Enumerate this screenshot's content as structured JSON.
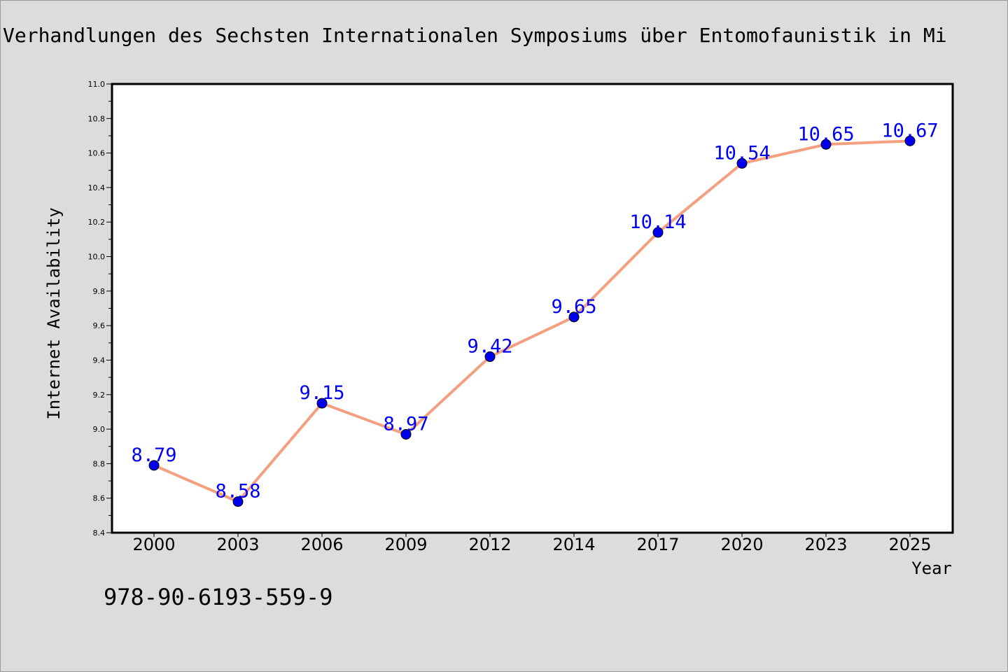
{
  "document": {
    "title": "Verhandlungen des Sechsten Internationalen Symposiums über Entomofaunistik in Mi",
    "isbn": "978-90-6193-559-9"
  },
  "chart_data": {
    "type": "line",
    "categories": [
      "2000",
      "2003",
      "2006",
      "2009",
      "2012",
      "2014",
      "2017",
      "2020",
      "2023",
      "2025"
    ],
    "series": [
      {
        "values": [
          8.79,
          8.58,
          9.15,
          8.97,
          9.42,
          9.65,
          10.14,
          10.54,
          10.65,
          10.67
        ],
        "data_labels": [
          "8.79",
          "8.58",
          "9.15",
          "8.97",
          "9.42",
          "9.65",
          "10.14",
          "10.54",
          "10.65",
          "10.67"
        ],
        "line_color": "#f4a080",
        "marker_color": "#0000ee",
        "label_color": "#0000ee"
      }
    ],
    "xlabel": "Year",
    "ylabel": "Internet Availability",
    "ylim": [
      8.4,
      11.0
    ],
    "yticks": [
      "8.4",
      "8.6",
      "8.8",
      "9.0",
      "9.2",
      "9.4",
      "9.6",
      "9.8",
      "10.0",
      "10.2",
      "10.4",
      "10.6",
      "10.8",
      "11.0"
    ],
    "grid": false,
    "legend": "none"
  }
}
